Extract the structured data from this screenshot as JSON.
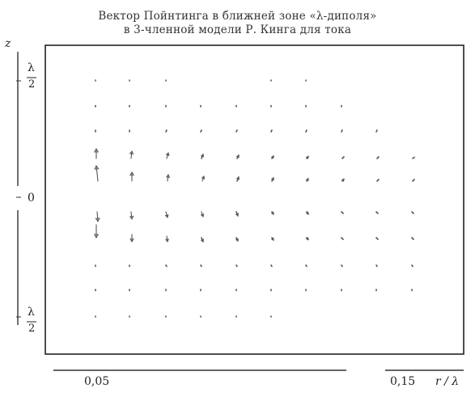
{
  "title": {
    "line1": "Вектор Пойнтинга в ближней зоне «λ-диполя»",
    "line2": "в 3-членной модели Р. Кинга для тока"
  },
  "axes": {
    "z_label": "z",
    "r_label": "r / λ",
    "z_top_num": "λ",
    "z_top_den": "2",
    "z_zero": "0",
    "z_bottom_num": "λ",
    "z_bottom_den": "2",
    "r_tick_1": "0,05",
    "r_tick_2": "0,15"
  },
  "colors": {
    "frame": "#222222",
    "arrow": "#555555"
  }
}
